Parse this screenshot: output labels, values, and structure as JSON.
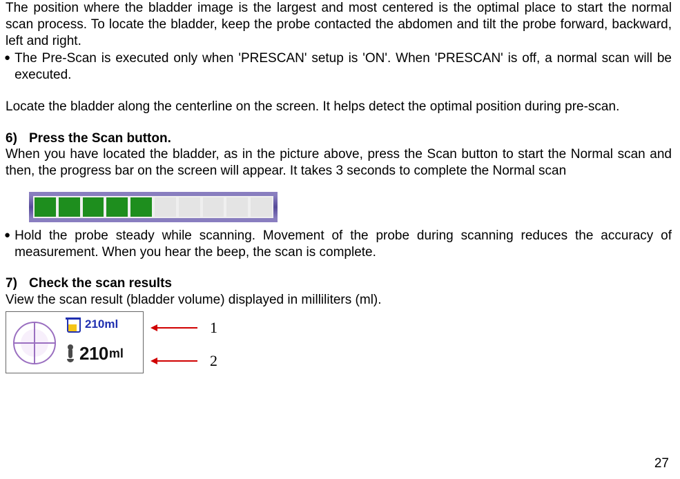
{
  "intro1": "The position where the bladder image is the largest and most centered is the optimal place to start the normal scan process. To locate the bladder, keep the probe contacted the abdomen and tilt the probe forward, backward, left and right.",
  "bullet1": "The Pre-Scan is executed only when 'PRESCAN' setup is 'ON'. When 'PRESCAN' is off, a normal scan will be executed.",
  "centerline": "Locate the bladder along the centerline on the screen. It helps detect the optimal position during pre-scan.",
  "step6_num": "6)",
  "step6_title": "Press the Scan button.",
  "step6_body": "When you have located the bladder, as in the picture above, press the Scan button to start the Normal scan and then, the progress bar on the screen will appear. It takes 3 seconds to complete the Normal scan",
  "bullet2": "Hold the probe steady while scanning. Movement of the probe during scanning reduces the accuracy of measurement. When you hear the beep, the scan is complete.",
  "step7_num": "7)",
  "step7_title": "Check the scan results",
  "step7_body": "View the scan result (bladder volume) displayed in milliliters (ml).",
  "progress": {
    "filled": 5,
    "total": 10,
    "fill_color": "#1e8e1e",
    "empty_color": "#e4e4e4"
  },
  "result": {
    "vol1": "210ml",
    "vol2_num": "210",
    "vol2_unit": "ml",
    "arrow1_label": "1",
    "arrow2_label": "2"
  },
  "page_number": "27"
}
